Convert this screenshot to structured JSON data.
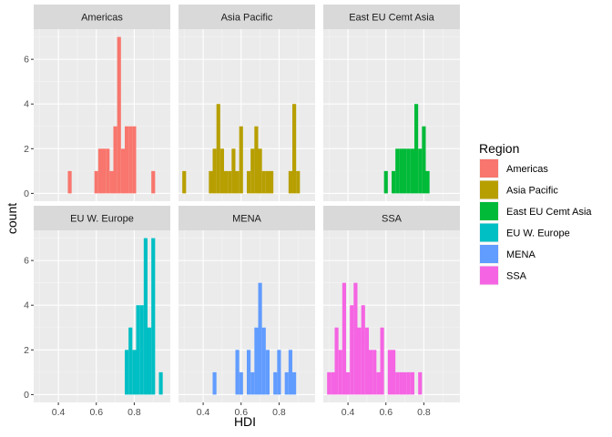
{
  "chart_data": {
    "type": "bar",
    "subtype": "faceted-histogram",
    "xlabel": "HDI",
    "ylabel": "count",
    "xlim": [
      0.27,
      0.99
    ],
    "ylim": [
      -0.35,
      7.35
    ],
    "x_ticks": [
      0.4,
      0.6,
      0.8
    ],
    "y_ticks": [
      0,
      2,
      4,
      6
    ],
    "grid": true,
    "bin_width": 0.02,
    "legend": {
      "title": "Region",
      "position": "right",
      "entries": [
        "Americas",
        "Asia Pacific",
        "East EU Cemt Asia",
        "EU W. Europe",
        "MENA",
        "SSA"
      ]
    },
    "panels": [
      {
        "name": "Americas",
        "color": "#F8766D",
        "x": [
          0.46,
          0.6,
          0.62,
          0.64,
          0.66,
          0.68,
          0.7,
          0.72,
          0.74,
          0.76,
          0.78,
          0.8,
          0.9
        ],
        "y": [
          1,
          1,
          2,
          2,
          2,
          1,
          3,
          7,
          2,
          3,
          3,
          3,
          1
        ]
      },
      {
        "name": "Asia Pacific",
        "color": "#B79F00",
        "x": [
          0.3,
          0.44,
          0.46,
          0.48,
          0.5,
          0.52,
          0.54,
          0.56,
          0.58,
          0.6,
          0.64,
          0.66,
          0.68,
          0.7,
          0.72,
          0.74,
          0.76,
          0.86,
          0.88,
          0.9
        ],
        "y": [
          1,
          1,
          2,
          4,
          2,
          1,
          1,
          2,
          1,
          3,
          1,
          2,
          3,
          2,
          1,
          1,
          1,
          1,
          4,
          1
        ]
      },
      {
        "name": "East EU Cemt Asia",
        "color": "#00BA38",
        "x": [
          0.6,
          0.64,
          0.66,
          0.68,
          0.7,
          0.72,
          0.74,
          0.76,
          0.78,
          0.8,
          0.82
        ],
        "y": [
          1,
          1,
          2,
          2,
          2,
          2,
          2,
          4,
          2,
          3,
          1
        ]
      },
      {
        "name": "EU W. Europe",
        "color": "#00BFC4",
        "x": [
          0.76,
          0.78,
          0.8,
          0.82,
          0.84,
          0.86,
          0.88,
          0.9,
          0.94
        ],
        "y": [
          2,
          3,
          2,
          4,
          4,
          7,
          3,
          7,
          1
        ]
      },
      {
        "name": "MENA",
        "color": "#619CFF",
        "x": [
          0.46,
          0.58,
          0.6,
          0.64,
          0.66,
          0.68,
          0.7,
          0.72,
          0.74,
          0.78,
          0.8,
          0.84,
          0.86,
          0.88
        ],
        "y": [
          1,
          2,
          1,
          2,
          1,
          3,
          5,
          3,
          2,
          1,
          2,
          1,
          2,
          1
        ]
      },
      {
        "name": "SSA",
        "color": "#F564E3",
        "x": [
          0.3,
          0.32,
          0.34,
          0.36,
          0.38,
          0.4,
          0.42,
          0.44,
          0.46,
          0.48,
          0.5,
          0.52,
          0.54,
          0.56,
          0.58,
          0.62,
          0.64,
          0.66,
          0.68,
          0.7,
          0.72,
          0.74,
          0.78
        ],
        "y": [
          1,
          1,
          3,
          2,
          5,
          1,
          4,
          5,
          3,
          4,
          3,
          2,
          2,
          1,
          3,
          2,
          2,
          1,
          1,
          1,
          1,
          1,
          1
        ]
      }
    ]
  }
}
